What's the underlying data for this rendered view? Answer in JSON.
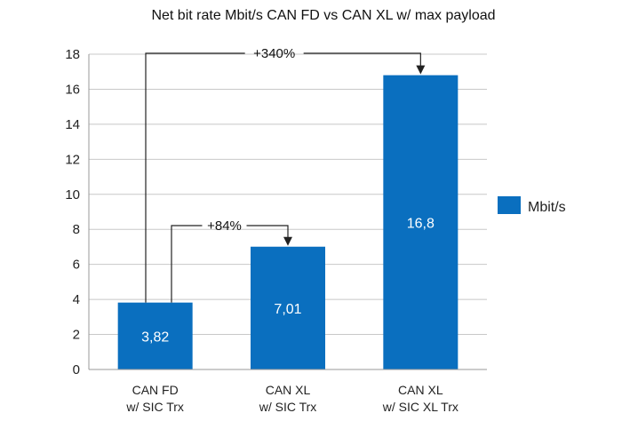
{
  "chart_data": {
    "type": "bar",
    "title": "Net bit rate Mbit/s CAN FD vs CAN XL w/ max payload",
    "categories": [
      [
        "CAN FD",
        "w/ SIC Trx"
      ],
      [
        "CAN XL",
        "w/ SIC Trx"
      ],
      [
        "CAN XL",
        "w/ SIC XL Trx"
      ]
    ],
    "series": [
      {
        "name": "Mbit/s",
        "values": [
          3.82,
          7.01,
          16.8
        ],
        "labels": [
          "3,82",
          "7,01",
          "16,8"
        ]
      }
    ],
    "ylim": [
      0,
      18
    ],
    "yticks": [
      0,
      2,
      4,
      6,
      8,
      10,
      12,
      14,
      16,
      18
    ],
    "grid": true,
    "legend": "right",
    "annotations": [
      {
        "text": "+84%",
        "from": 0,
        "to": 1
      },
      {
        "text": "+340%",
        "from": 0,
        "to": 2
      }
    ],
    "bar_color": "#0a6fbf"
  }
}
